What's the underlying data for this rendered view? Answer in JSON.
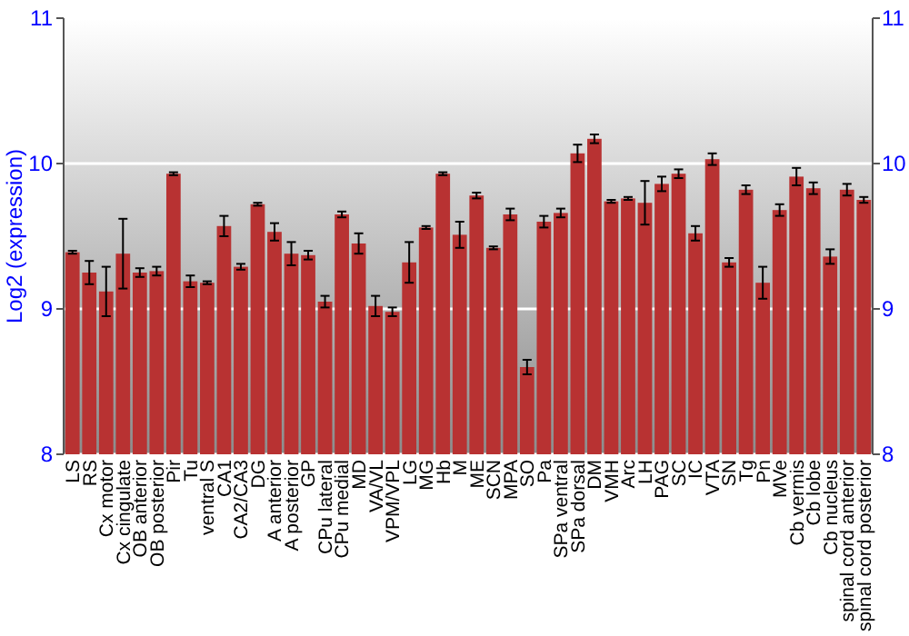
{
  "chart_data": {
    "type": "bar",
    "ylabel": "Log2 (expression)",
    "categories": [
      "LS",
      "RS",
      "Cx motor",
      "Cx cingulate",
      "OB anterior",
      "OB posterior",
      "Pir",
      "Tu",
      "ventral S",
      "CA1",
      "CA2/CA3",
      "DG",
      "A anterior",
      "A posterior",
      "GP",
      "CPu lateral",
      "CPu medial",
      "MD",
      "VA/VL",
      "VPM/VPL",
      "LG",
      "MG",
      "Hb",
      "M",
      "ME",
      "SCN",
      "MPA",
      "SO",
      "Pa",
      "SPa ventral",
      "SPa dorsal",
      "DM",
      "VMH",
      "Arc",
      "LH",
      "PAG",
      "SC",
      "IC",
      "VTA",
      "SN",
      "Tg",
      "Pn",
      "MVe",
      "Cb vermis",
      "Cb lobe",
      "Cb nucleus",
      "spinal cord anterior",
      "spinal cord posterior"
    ],
    "values": [
      9.39,
      9.25,
      9.12,
      9.38,
      9.25,
      9.26,
      9.93,
      9.19,
      9.18,
      9.57,
      9.29,
      9.72,
      9.53,
      9.38,
      9.37,
      9.05,
      9.65,
      9.45,
      9.02,
      8.98,
      9.32,
      9.56,
      9.93,
      9.51,
      9.78,
      9.42,
      9.65,
      8.6,
      9.6,
      9.66,
      10.07,
      10.17,
      9.74,
      9.76,
      9.73,
      9.86,
      9.93,
      9.52,
      10.03,
      9.32,
      9.82,
      9.18,
      9.68,
      9.91,
      9.83,
      9.36,
      9.82,
      9.75
    ],
    "errors": [
      0.01,
      0.08,
      0.17,
      0.24,
      0.03,
      0.03,
      0.01,
      0.04,
      0.01,
      0.07,
      0.02,
      0.01,
      0.06,
      0.08,
      0.03,
      0.04,
      0.02,
      0.07,
      0.07,
      0.03,
      0.14,
      0.01,
      0.01,
      0.09,
      0.02,
      0.01,
      0.04,
      0.05,
      0.04,
      0.03,
      0.06,
      0.03,
      0.01,
      0.01,
      0.15,
      0.05,
      0.03,
      0.05,
      0.04,
      0.03,
      0.03,
      0.11,
      0.04,
      0.06,
      0.04,
      0.05,
      0.04,
      0.02
    ],
    "color": "#b83232",
    "ylim": [
      8,
      11
    ],
    "yticks": [
      8,
      9,
      10,
      11
    ],
    "y2lim": [
      8,
      11
    ],
    "y2ticks": [
      8,
      9,
      10,
      11
    ],
    "grid": "y"
  }
}
